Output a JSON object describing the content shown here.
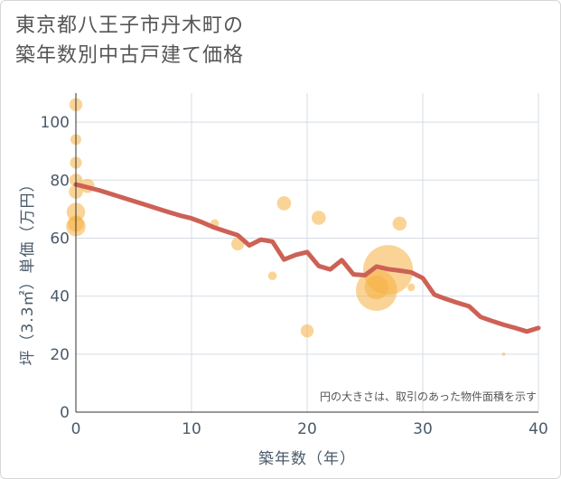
{
  "header": {
    "title_line1": "東京都八王子市丹木町の",
    "title_line2": "築年数別中古戸建て価格"
  },
  "chart_data": {
    "type": "scatter",
    "xlabel": "築年数（年）",
    "ylabel": "坪（3.3㎡）単価（万円）",
    "xlim": [
      0,
      40
    ],
    "ylim": [
      0,
      110
    ],
    "x_ticks": [
      0,
      10,
      20,
      30,
      40
    ],
    "y_ticks": [
      0,
      20,
      40,
      60,
      80,
      100
    ],
    "grid": true,
    "note": "円の大きさは、取引のあった物件面積を示す",
    "colors": {
      "bubble": "#f5b041",
      "trend": "#cd6155",
      "grid": "#d5dce4",
      "axis": "#333333"
    },
    "scatter_points": [
      {
        "x": 0,
        "y": 106,
        "size": 1.2
      },
      {
        "x": 0,
        "y": 94,
        "size": 1.0
      },
      {
        "x": 0,
        "y": 86,
        "size": 1.1
      },
      {
        "x": 0,
        "y": 80,
        "size": 1.2
      },
      {
        "x": 0,
        "y": 76,
        "size": 1.3
      },
      {
        "x": 0,
        "y": 69,
        "size": 1.7
      },
      {
        "x": 0,
        "y": 65,
        "size": 1.5
      },
      {
        "x": 0,
        "y": 64,
        "size": 1.8
      },
      {
        "x": 1,
        "y": 78,
        "size": 1.3
      },
      {
        "x": 12,
        "y": 65,
        "size": 0.8
      },
      {
        "x": 14,
        "y": 58,
        "size": 1.2
      },
      {
        "x": 17,
        "y": 47,
        "size": 0.8
      },
      {
        "x": 18,
        "y": 72,
        "size": 1.3
      },
      {
        "x": 20,
        "y": 28,
        "size": 1.2
      },
      {
        "x": 21,
        "y": 67,
        "size": 1.3
      },
      {
        "x": 26,
        "y": 42,
        "size": 3.8
      },
      {
        "x": 26,
        "y": 43,
        "size": 2.2
      },
      {
        "x": 27,
        "y": 49,
        "size": 4.6
      },
      {
        "x": 28,
        "y": 65,
        "size": 1.3
      },
      {
        "x": 29,
        "y": 43,
        "size": 0.7
      },
      {
        "x": 37,
        "y": 20,
        "size": 0.3
      }
    ],
    "trend_line": {
      "x": [
        0,
        2,
        4,
        6,
        8,
        9,
        10,
        11,
        12,
        13,
        14,
        15,
        16,
        17,
        18,
        19,
        20,
        21,
        22,
        23,
        24,
        25,
        26,
        27,
        28,
        29,
        30,
        31,
        32,
        33,
        34,
        35,
        36,
        37,
        38,
        39,
        40
      ],
      "y": [
        78.5,
        76.5,
        74,
        71.5,
        69,
        67.8,
        66.8,
        65.3,
        63.6,
        62.3,
        61,
        57.5,
        59.5,
        58.8,
        52.6,
        54.2,
        55.2,
        50.4,
        49.2,
        52.4,
        47.5,
        47.2,
        50.2,
        49.3,
        48.8,
        48.2,
        46.2,
        40.5,
        39,
        37.7,
        36.5,
        32.8,
        31.4,
        30.1,
        29,
        27.8,
        29
      ]
    }
  }
}
